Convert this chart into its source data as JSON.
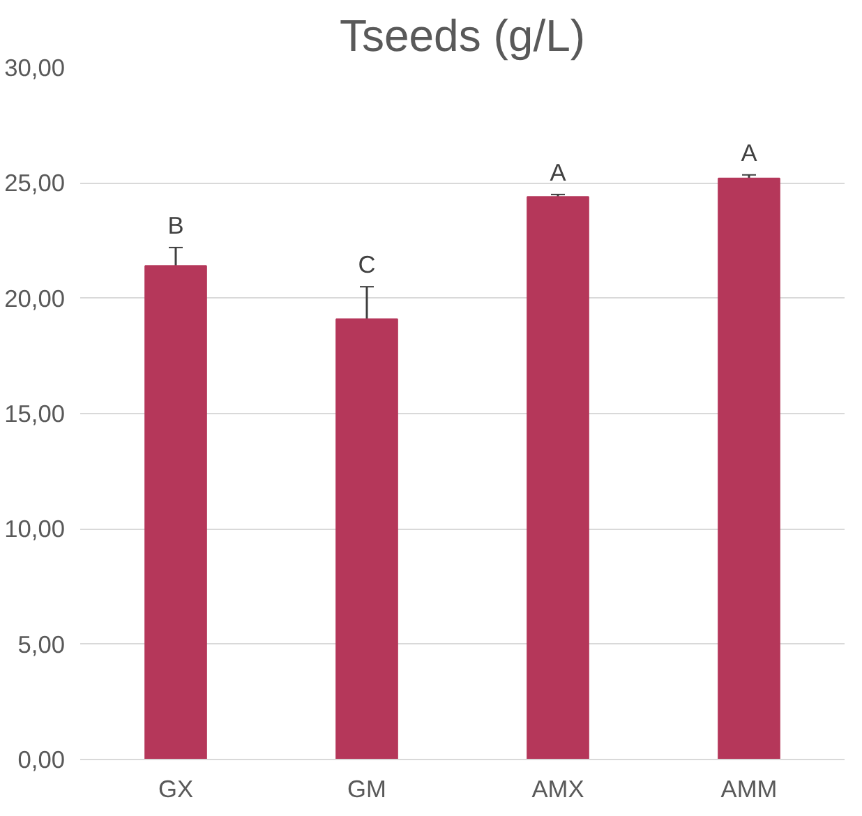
{
  "chart_data": {
    "type": "bar",
    "title": "Tseeds (g/L)",
    "categories": [
      "GX",
      "GM",
      "AMX",
      "AMM"
    ],
    "values": [
      21.4,
      19.1,
      24.4,
      25.2
    ],
    "errors": [
      0.8,
      1.4,
      0.1,
      0.15
    ],
    "color": "#b5375a",
    "ylim": [
      0,
      30
    ],
    "yticks": [
      {
        "value": 0,
        "label": "0,00"
      },
      {
        "value": 5,
        "label": "5,00"
      },
      {
        "value": 10,
        "label": "10,00"
      },
      {
        "value": 15,
        "label": "15,00"
      },
      {
        "value": 20,
        "label": "20,00"
      },
      {
        "value": 25,
        "label": "25,00"
      },
      {
        "value": 30,
        "label": "30,00"
      }
    ],
    "grid": "y",
    "annotations": [
      {
        "text": "B",
        "x": "GX",
        "y": 22.2
      },
      {
        "text": "C",
        "x": "GM",
        "y": 20.5
      },
      {
        "text": "A",
        "x": "AMX",
        "y": 24.5
      },
      {
        "text": "A",
        "x": "AMM",
        "y": 25.35
      }
    ]
  }
}
